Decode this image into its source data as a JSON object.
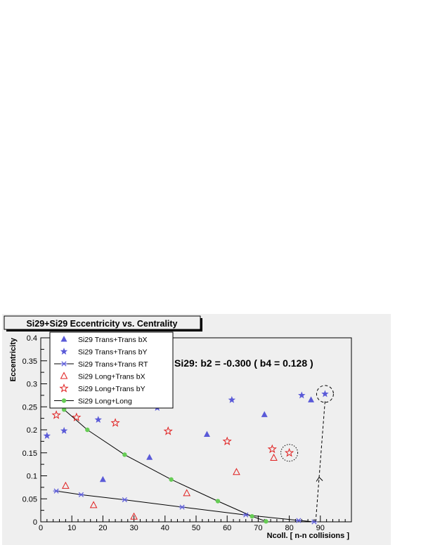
{
  "chart_data": {
    "type": "scatter",
    "title": "Si29+Si29  Eccentricity vs. Centrality",
    "xlabel": "Ncoll. [ n-n collisions ]",
    "ylabel": "Eccentricity",
    "annotation": "Si29:  b2 = -0.300 ( b4 = 0.128 )",
    "xlim": [
      0,
      100
    ],
    "ylim": [
      0,
      0.4
    ],
    "xticks": [
      "0",
      "10",
      "20",
      "30",
      "40",
      "50",
      "60",
      "70",
      "80",
      "90"
    ],
    "yticks": [
      "0",
      "0.05",
      "0.1",
      "0.15",
      "0.2",
      "0.25",
      "0.3",
      "0.35",
      "0.4"
    ],
    "grid": false,
    "legend_position": "top-left",
    "series": [
      {
        "name": "Si29 Trans+Trans bX",
        "marker": "triangle-filled",
        "color": "#5a5ad8",
        "line": false,
        "points": [
          [
            20,
            0.092
          ],
          [
            35,
            0.14
          ],
          [
            53.5,
            0.19
          ],
          [
            72,
            0.233
          ],
          [
            87,
            0.265
          ]
        ]
      },
      {
        "name": "Si29 Trans+Trans bY",
        "marker": "star-filled",
        "color": "#5a5ad8",
        "line": false,
        "points": [
          [
            2,
            0.187
          ],
          [
            7.5,
            0.198
          ],
          [
            18.5,
            0.222
          ],
          [
            37.5,
            0.248
          ],
          [
            61.5,
            0.265
          ],
          [
            84,
            0.275
          ],
          [
            91.5,
            0.278
          ]
        ]
      },
      {
        "name": "Si29 Trans+Trans RT",
        "marker": "asterisk",
        "color": "#5a5ad8",
        "line": true,
        "points": [
          [
            5,
            0.067
          ],
          [
            13,
            0.059
          ],
          [
            27,
            0.048
          ],
          [
            45.5,
            0.032
          ],
          [
            66,
            0.015
          ],
          [
            83,
            0.003
          ],
          [
            88,
            0.0
          ]
        ]
      },
      {
        "name": "Si29 Long+Trans bX",
        "marker": "triangle-open",
        "color": "#e02020",
        "line": false,
        "points": [
          [
            8,
            0.078
          ],
          [
            17,
            0.036
          ],
          [
            30,
            0.011
          ],
          [
            47,
            0.062
          ],
          [
            63,
            0.108
          ],
          [
            75,
            0.139
          ]
        ]
      },
      {
        "name": "Si29 Long+Trans bY",
        "marker": "star-open",
        "color": "#e02020",
        "line": false,
        "points": [
          [
            5,
            0.232
          ],
          [
            11.5,
            0.227
          ],
          [
            24,
            0.215
          ],
          [
            41,
            0.197
          ],
          [
            60,
            0.175
          ],
          [
            74.5,
            0.158
          ],
          [
            80,
            0.15
          ]
        ]
      },
      {
        "name": "Si29 Long+Long",
        "marker": "circle-filled",
        "color": "#66cc55",
        "line": true,
        "points": [
          [
            7.5,
            0.244
          ],
          [
            15,
            0.2
          ],
          [
            27,
            0.146
          ],
          [
            42,
            0.092
          ],
          [
            57,
            0.045
          ],
          [
            68,
            0.012
          ],
          [
            72.5,
            0.001
          ]
        ]
      }
    ],
    "highlights": [
      {
        "x": 80,
        "y": 0.15,
        "style": "dotted-circle"
      },
      {
        "x": 91.5,
        "y": 0.278,
        "style": "dashed-circle"
      }
    ],
    "arrow": {
      "from": [
        88.5,
        0.0
      ],
      "to": [
        91.5,
        0.262
      ]
    }
  }
}
